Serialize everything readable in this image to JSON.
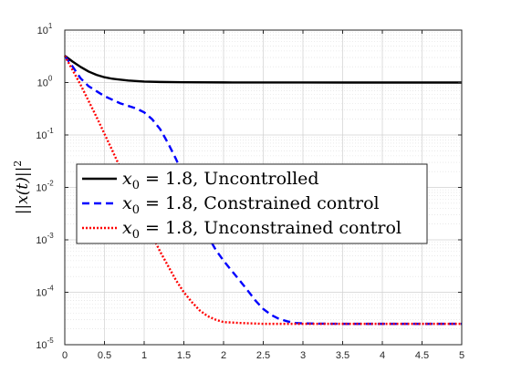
{
  "chart_data": {
    "type": "line",
    "title": "",
    "xlabel": "",
    "ylabel": "||x(t)||^2",
    "x_scale": "linear",
    "y_scale": "log",
    "xlim": [
      0,
      5
    ],
    "ylim": [
      1e-05,
      10
    ],
    "grid": true,
    "minor_grid": true,
    "legend_position": "middle-left",
    "x_ticks": [
      {
        "value": 0,
        "label": "0"
      },
      {
        "value": 0.5,
        "label": "0.5"
      },
      {
        "value": 1,
        "label": "1"
      },
      {
        "value": 1.5,
        "label": "1.5"
      },
      {
        "value": 2,
        "label": "2"
      },
      {
        "value": 2.5,
        "label": "2.5"
      },
      {
        "value": 3,
        "label": "3"
      },
      {
        "value": 3.5,
        "label": "3.5"
      },
      {
        "value": 4,
        "label": "4"
      },
      {
        "value": 4.5,
        "label": "4.5"
      },
      {
        "value": 5,
        "label": "5"
      }
    ],
    "y_ticks": [
      {
        "value": 1e-05,
        "base": "10",
        "exp": "-5"
      },
      {
        "value": 0.0001,
        "base": "10",
        "exp": "-4"
      },
      {
        "value": 0.001,
        "base": "10",
        "exp": "-3"
      },
      {
        "value": 0.01,
        "base": "10",
        "exp": "-2"
      },
      {
        "value": 0.1,
        "base": "10",
        "exp": "-1"
      },
      {
        "value": 1,
        "base": "10",
        "exp": "0"
      },
      {
        "value": 10,
        "base": "10",
        "exp": "1"
      }
    ],
    "series": [
      {
        "name": "x0 = 1.8, Uncontrolled",
        "legend_prefix": "x",
        "legend_sub": "0",
        "legend_suffix": " = 1.8, Uncontrolled",
        "color": "#000000",
        "dash": "solid",
        "x": [
          0,
          0.05,
          0.1,
          0.2,
          0.3,
          0.4,
          0.5,
          0.6,
          0.8,
          1.0,
          1.2,
          1.5,
          2.0,
          2.5,
          3.0,
          4.0,
          5.0
        ],
        "y": [
          3.24,
          2.85,
          2.5,
          1.98,
          1.62,
          1.4,
          1.26,
          1.18,
          1.09,
          1.045,
          1.025,
          1.012,
          1.005,
          1.002,
          1.001,
          1.0,
          1.0
        ]
      },
      {
        "name": "x0 = 1.8, Constrained control",
        "legend_prefix": "x",
        "legend_sub": "0",
        "legend_suffix": " = 1.8, Constrained control",
        "color": "#0000ff",
        "dash": "dashed",
        "x": [
          0,
          0.1,
          0.2,
          0.3,
          0.5,
          0.7,
          0.9,
          1.0,
          1.1,
          1.2,
          1.3,
          1.4,
          1.5,
          1.6,
          1.7,
          1.8,
          1.9,
          2.0,
          2.1,
          2.2,
          2.3,
          2.4,
          2.5,
          2.6,
          2.7,
          2.8,
          2.9,
          3.0,
          3.2,
          3.5,
          4.0,
          5.0
        ],
        "y": [
          3.24,
          2.0,
          1.2,
          0.85,
          0.55,
          0.4,
          0.32,
          0.27,
          0.2,
          0.13,
          0.07,
          0.035,
          0.016,
          0.0065,
          0.0026,
          0.0012,
          0.00065,
          0.0004,
          0.00026,
          0.00017,
          0.00011,
          7e-05,
          4.8e-05,
          3.7e-05,
          3.1e-05,
          2.8e-05,
          2.6e-05,
          2.55e-05,
          2.52e-05,
          2.5e-05,
          2.5e-05,
          2.5e-05
        ]
      },
      {
        "name": "x0 = 1.8, Unconstrained control",
        "legend_prefix": "x",
        "legend_sub": "0",
        "legend_suffix": " = 1.8, Unconstrained control",
        "color": "#ff0000",
        "dash": "dotted",
        "x": [
          0,
          0.2,
          0.4,
          0.6,
          0.8,
          1.0,
          1.2,
          1.3,
          1.4,
          1.5,
          1.6,
          1.7,
          1.8,
          1.9,
          2.0,
          2.2,
          2.5,
          3.0,
          4.0,
          5.0
        ],
        "y": [
          3.24,
          0.9,
          0.22,
          0.05,
          0.011,
          0.0025,
          0.0006,
          0.00032,
          0.00017,
          0.0001,
          6.5e-05,
          4.5e-05,
          3.5e-05,
          3e-05,
          2.7e-05,
          2.6e-05,
          2.5e-05,
          2.5e-05,
          2.5e-05,
          2.5e-05
        ]
      }
    ]
  }
}
